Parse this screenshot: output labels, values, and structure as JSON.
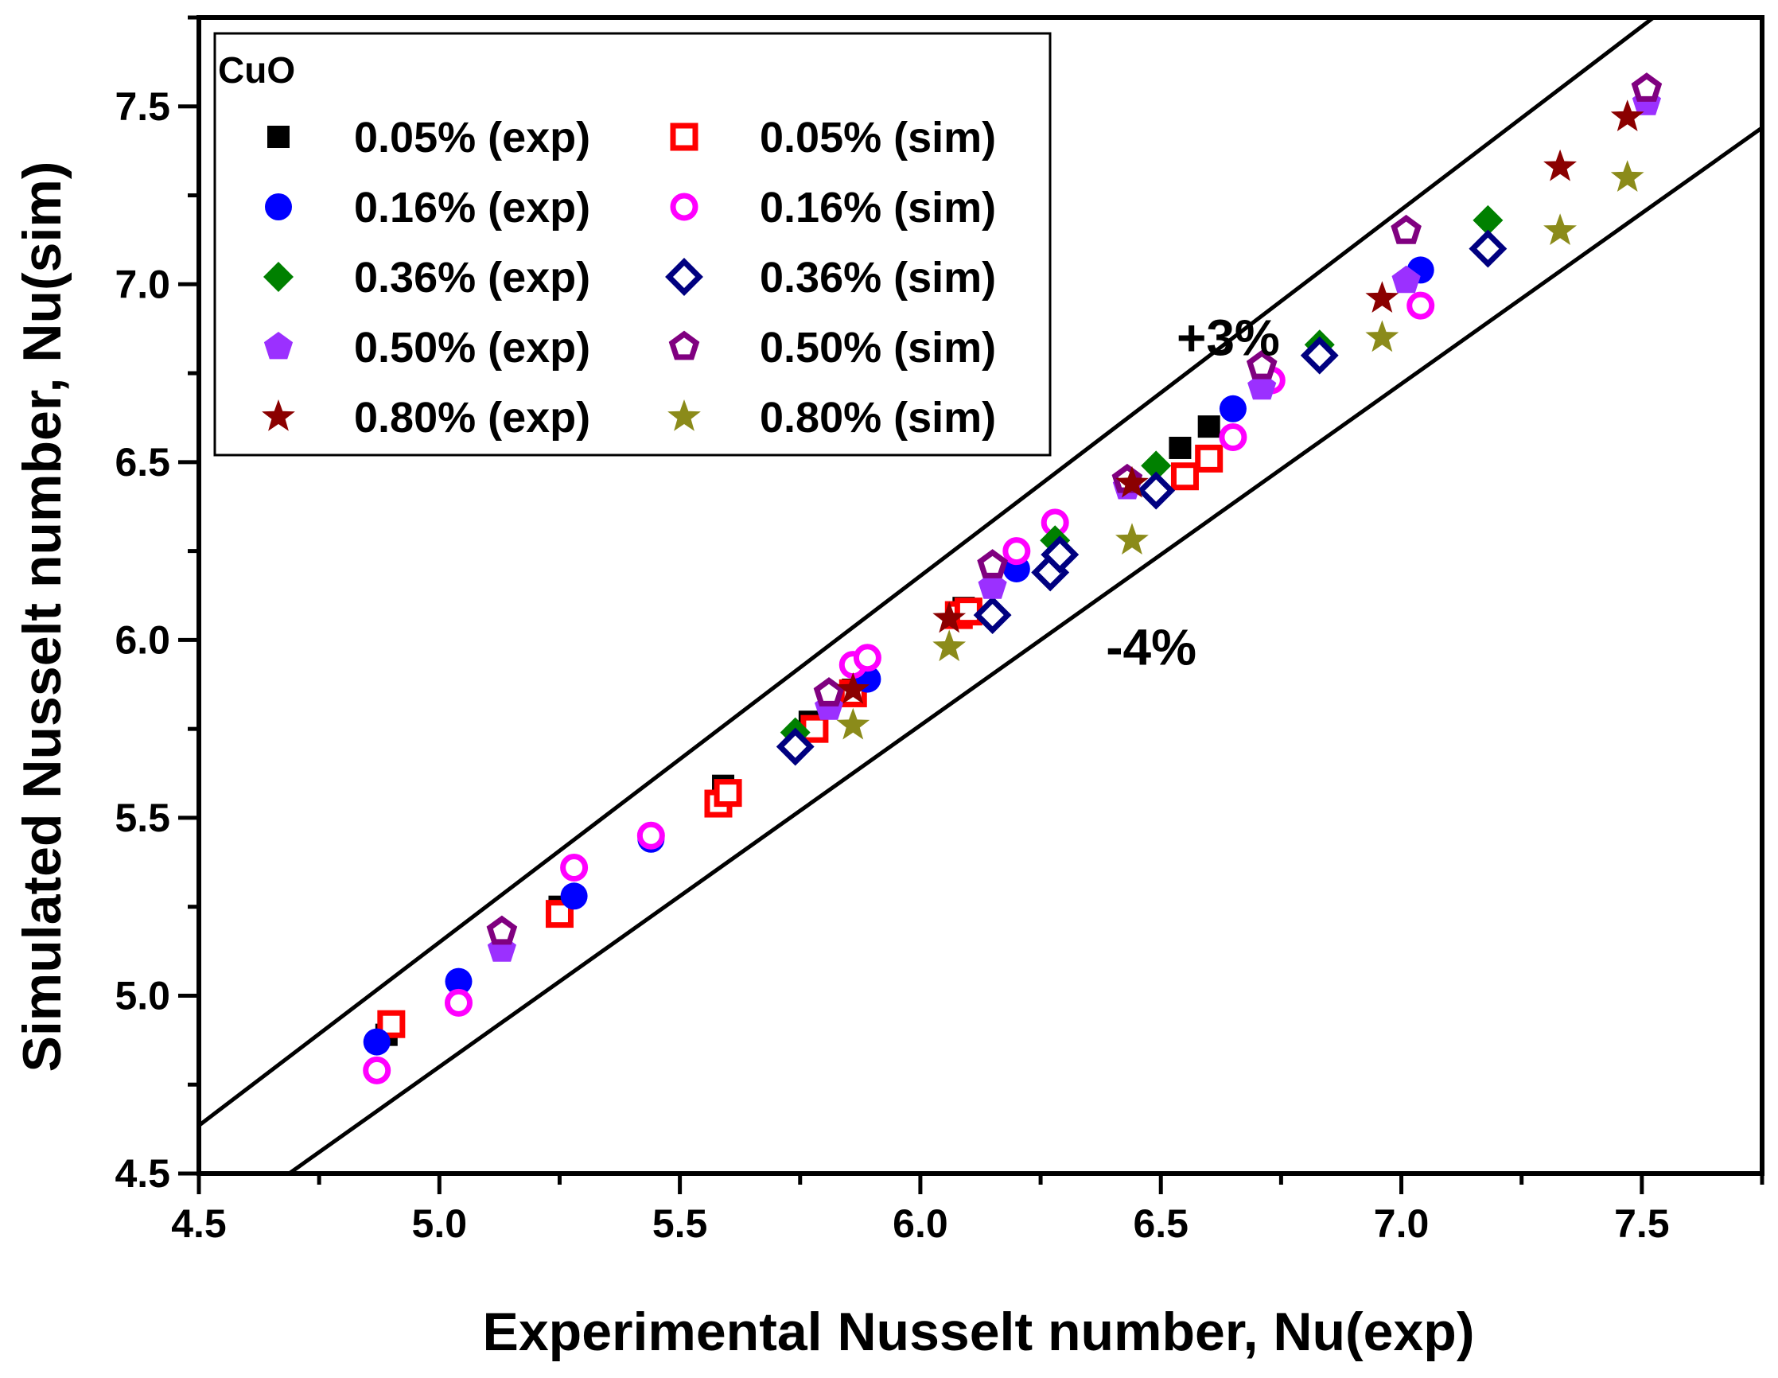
{
  "chart_data": {
    "type": "scatter",
    "title": "",
    "xlabel": "Experimental Nusselt number, Nu(exp)",
    "ylabel": "Simulated Nusselt number, Nu(sim)",
    "xlim": [
      4.5,
      7.75
    ],
    "ylim": [
      4.5,
      7.75
    ],
    "xticks": [
      "4.5",
      "5.0",
      "5.5",
      "6.0",
      "6.5",
      "7.0",
      "7.5"
    ],
    "yticks": [
      "4.5",
      "5.0",
      "5.5",
      "6.0",
      "6.5",
      "7.0",
      "7.5"
    ],
    "grid": false,
    "legend": {
      "title": "CuO",
      "placement": "top-left",
      "columns": 2
    },
    "reference_lines": [
      {
        "name": "plus-3-percent",
        "label": "+3%",
        "slope": 1.03,
        "label_at": [
          6.64,
          6.85
        ]
      },
      {
        "name": "minus-4-percent",
        "label": "-4%",
        "slope": 0.96,
        "label_at": [
          6.48,
          5.98
        ]
      }
    ],
    "series": [
      {
        "name": "0.05% (exp)",
        "marker": "square",
        "fill": true,
        "color": "#000000",
        "x": [
          4.89,
          5.25,
          5.59,
          5.77,
          5.86,
          6.09,
          6.54,
          6.6
        ],
        "y": [
          4.89,
          5.25,
          5.59,
          5.77,
          5.86,
          6.09,
          6.54,
          6.6
        ]
      },
      {
        "name": "0.05% (sim)",
        "marker": "square",
        "fill": false,
        "color": "#ff0000",
        "x": [
          4.9,
          5.25,
          5.58,
          5.6,
          5.78,
          5.86,
          6.08,
          6.1,
          6.55,
          6.6
        ],
        "y": [
          4.92,
          5.23,
          5.54,
          5.57,
          5.75,
          5.85,
          6.07,
          6.08,
          6.46,
          6.51
        ]
      },
      {
        "name": "0.16% (exp)",
        "marker": "circle",
        "fill": true,
        "color": "#0000ff",
        "x": [
          4.87,
          5.04,
          5.28,
          5.44,
          5.89,
          6.2,
          6.65,
          7.04
        ],
        "y": [
          4.87,
          5.04,
          5.28,
          5.44,
          5.89,
          6.2,
          6.65,
          7.04
        ]
      },
      {
        "name": "0.16% (sim)",
        "marker": "circle",
        "fill": false,
        "color": "#ff00ff",
        "x": [
          4.87,
          5.04,
          5.28,
          5.44,
          5.86,
          5.89,
          6.2,
          6.28,
          6.65,
          6.73,
          7.04
        ],
        "y": [
          4.79,
          4.98,
          5.36,
          5.45,
          5.93,
          5.95,
          6.25,
          6.33,
          6.57,
          6.73,
          6.94
        ]
      },
      {
        "name": "0.36% (exp)",
        "marker": "diamond",
        "fill": true,
        "color": "#008000",
        "x": [
          5.74,
          6.28,
          6.49,
          6.83,
          7.18
        ],
        "y": [
          5.74,
          6.28,
          6.49,
          6.83,
          7.18
        ]
      },
      {
        "name": "0.36% (sim)",
        "marker": "diamond",
        "fill": false,
        "color": "#000080",
        "x": [
          5.74,
          6.15,
          6.27,
          6.29,
          6.49,
          6.83,
          7.18
        ],
        "y": [
          5.7,
          6.07,
          6.19,
          6.24,
          6.42,
          6.8,
          7.1
        ]
      },
      {
        "name": "0.50% (exp)",
        "marker": "pentagon",
        "fill": true,
        "color": "#9b30ff",
        "x": [
          5.13,
          5.81,
          6.15,
          6.43,
          6.71,
          7.01,
          7.51
        ],
        "y": [
          5.13,
          5.81,
          6.15,
          6.43,
          6.71,
          7.01,
          7.51
        ]
      },
      {
        "name": "0.50% (sim)",
        "marker": "pentagon",
        "fill": false,
        "color": "#800080",
        "x": [
          5.13,
          5.81,
          6.15,
          6.43,
          6.71,
          7.01,
          7.51
        ],
        "y": [
          5.18,
          5.85,
          6.21,
          6.45,
          6.77,
          7.15,
          7.55
        ]
      },
      {
        "name": "0.80% (exp)",
        "marker": "star",
        "fill": true,
        "color": "#8b0000",
        "x": [
          5.86,
          6.06,
          6.44,
          6.96,
          7.33,
          7.47
        ],
        "y": [
          5.86,
          6.06,
          6.44,
          6.96,
          7.33,
          7.47
        ]
      },
      {
        "name": "0.80% (sim)",
        "marker": "star",
        "fill": true,
        "color": "#8b8b1a",
        "x": [
          5.86,
          6.06,
          6.44,
          6.96,
          7.33,
          7.47
        ],
        "y": [
          5.76,
          5.98,
          6.28,
          6.85,
          7.15,
          7.3
        ]
      }
    ]
  }
}
